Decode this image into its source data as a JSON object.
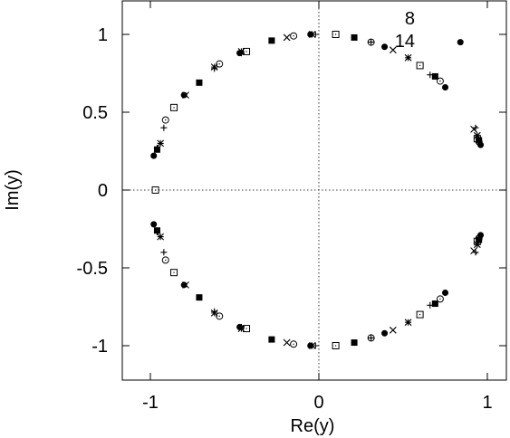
{
  "chart_data": {
    "type": "scatter",
    "xlabel": "Re(y)",
    "ylabel": "Im(y)",
    "xlim": [
      -1.2,
      1.15
    ],
    "ylim": [
      -1.2,
      1.2
    ],
    "xticks": [
      -1,
      0,
      1
    ],
    "xtick_labels": [
      "-1",
      "0",
      "1"
    ],
    "yticks": [
      -1,
      -0.5,
      0,
      0.5,
      1
    ],
    "ytick_labels": [
      "-1",
      "-0.5",
      "0",
      "0.5",
      "1"
    ],
    "zero_lines": "dotted",
    "grid": false,
    "legend_position": "top-right",
    "legend_entries": [
      "8",
      "14"
    ],
    "series": [
      {
        "name": "8",
        "marker": "plus",
        "color": "#000000",
        "points": [
          [
            0.31,
            0.95
          ],
          [
            0.93,
            0.4
          ],
          [
            0.93,
            -0.4
          ],
          [
            0.31,
            -0.95
          ],
          [
            -0.46,
            -0.88
          ],
          [
            -0.92,
            -0.4
          ],
          [
            -0.92,
            0.4
          ],
          [
            -0.46,
            0.88
          ],
          [
            -0.02,
            1.0
          ],
          [
            0.66,
            0.74
          ],
          [
            0.95,
            0.31
          ],
          [
            0.95,
            -0.31
          ],
          [
            0.66,
            -0.74
          ],
          [
            -0.02,
            -1.0
          ],
          [
            -0.62,
            -0.78
          ],
          [
            -0.96,
            -0.27
          ],
          [
            -0.96,
            0.27
          ],
          [
            -0.62,
            0.78
          ]
        ]
      },
      {
        "name": "",
        "marker": "x",
        "color": "#000000",
        "points": [
          [
            -0.19,
            0.98
          ],
          [
            0.44,
            0.9
          ],
          [
            0.92,
            0.39
          ],
          [
            0.92,
            -0.39
          ],
          [
            0.44,
            -0.9
          ],
          [
            -0.19,
            -0.98
          ],
          [
            -0.79,
            -0.61
          ],
          [
            -0.79,
            0.61
          ]
        ]
      },
      {
        "name": "",
        "marker": "asterisk",
        "color": "#000000",
        "points": [
          [
            -0.04,
            1.0
          ],
          [
            0.53,
            0.85
          ],
          [
            0.94,
            0.35
          ],
          [
            0.94,
            -0.35
          ],
          [
            0.53,
            -0.85
          ],
          [
            -0.04,
            -1.0
          ],
          [
            -0.94,
            -0.3
          ],
          [
            -0.94,
            0.3
          ],
          [
            -0.62,
            0.79
          ],
          [
            -0.62,
            -0.79
          ],
          [
            -0.46,
            0.89
          ],
          [
            -0.46,
            -0.89
          ]
        ]
      },
      {
        "name": "",
        "marker": "open-square",
        "color": "#000000",
        "points": [
          [
            0.1,
            1.0
          ],
          [
            0.6,
            0.8
          ],
          [
            0.94,
            0.33
          ],
          [
            0.94,
            -0.33
          ],
          [
            0.6,
            -0.8
          ],
          [
            0.1,
            -1.0
          ],
          [
            -0.97,
            0.0
          ],
          [
            -0.43,
            -0.89
          ],
          [
            -0.43,
            0.89
          ],
          [
            -0.86,
            0.53
          ],
          [
            -0.86,
            -0.53
          ]
        ]
      },
      {
        "name": "",
        "marker": "filled-square",
        "color": "#000000",
        "points": [
          [
            -0.28,
            0.96
          ],
          [
            0.21,
            0.98
          ],
          [
            0.69,
            0.73
          ],
          [
            0.95,
            0.32
          ],
          [
            0.95,
            -0.32
          ],
          [
            0.69,
            -0.73
          ],
          [
            0.21,
            -0.98
          ],
          [
            -0.28,
            -0.96
          ],
          [
            -0.71,
            -0.69
          ],
          [
            -0.96,
            -0.26
          ],
          [
            -0.96,
            0.26
          ],
          [
            -0.71,
            0.69
          ]
        ]
      },
      {
        "name": "",
        "marker": "open-circle",
        "color": "#000000",
        "points": [
          [
            -0.15,
            0.99
          ],
          [
            0.31,
            0.95
          ],
          [
            0.72,
            0.7
          ],
          [
            0.95,
            0.31
          ],
          [
            0.95,
            -0.31
          ],
          [
            0.72,
            -0.7
          ],
          [
            0.31,
            -0.95
          ],
          [
            -0.15,
            -0.99
          ],
          [
            -0.59,
            -0.81
          ],
          [
            -0.91,
            -0.45
          ],
          [
            -0.91,
            0.45
          ],
          [
            -0.59,
            0.81
          ]
        ]
      },
      {
        "name": "14",
        "marker": "filled-circle",
        "color": "#000000",
        "points": [
          [
            0.39,
            0.92
          ],
          [
            0.75,
            0.66
          ],
          [
            0.96,
            0.29
          ],
          [
            0.96,
            -0.29
          ],
          [
            0.75,
            -0.66
          ],
          [
            0.39,
            -0.92
          ],
          [
            -0.05,
            -1.0
          ],
          [
            -0.47,
            -0.88
          ],
          [
            -0.8,
            -0.61
          ],
          [
            -0.98,
            -0.22
          ],
          [
            -0.98,
            0.22
          ],
          [
            -0.8,
            0.61
          ],
          [
            -0.47,
            0.88
          ],
          [
            -0.05,
            1.0
          ],
          [
            0.84,
            0.95
          ]
        ]
      }
    ]
  }
}
